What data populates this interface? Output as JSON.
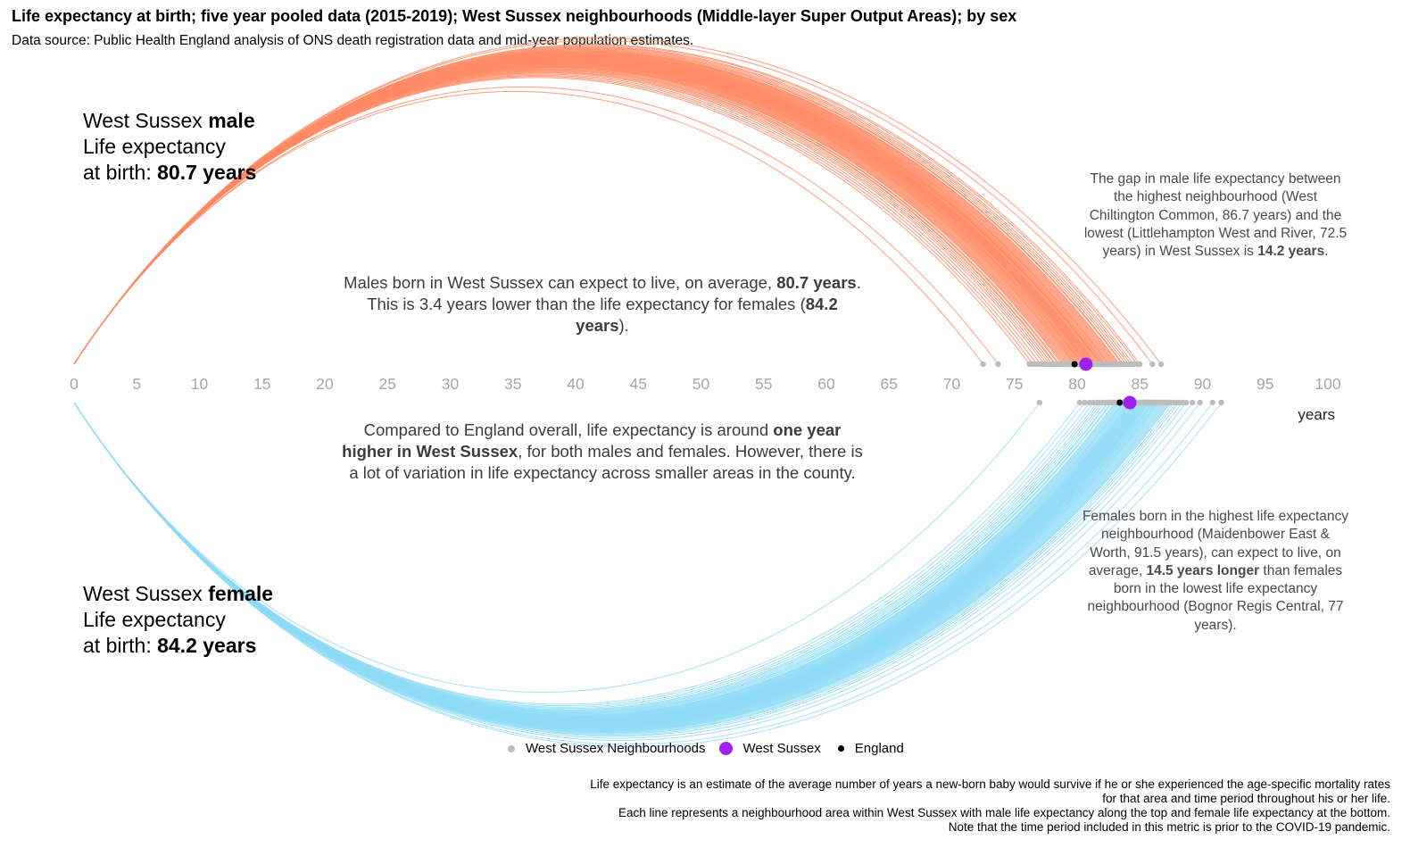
{
  "title": "Life expectancy at birth; five year pooled data (2015-2019); West Sussex neighbourhoods (Middle-layer Super Output Areas); by sex",
  "subtitle": "Data source: Public Health England analysis of ONS death registration data and mid-year population estimates.",
  "male_label": {
    "prefix": "West Sussex ",
    "sex": "male",
    "line2": "Life expectancy",
    "line3_prefix": "at birth: ",
    "value": "80.7 years"
  },
  "female_label": {
    "prefix": "West Sussex ",
    "sex": "female",
    "line2": "Life expectancy",
    "line3_prefix": "at birth: ",
    "value": "84.2 years"
  },
  "notes": {
    "males": {
      "t1": "Males born in West Sussex can expect to live, on average, ",
      "b1": "80.7 years",
      "t2": ". This is 3.4 years lower than the life expectancy for females (",
      "b2": "84.2 years",
      "t3": ")."
    },
    "compare": {
      "t1": "Compared to England overall, life expectancy is around ",
      "b1": "one year higher in West Sussex",
      "t2": ", for both males and females. However, there is a lot of variation in life expectancy across smaller areas in the county."
    },
    "male_gap": {
      "t1": "The gap in male life expectancy between the highest neighbourhood (West Chiltington Common, 86.7 years) and the lowest (Littlehampton West and River, 72.5 years) in West Sussex is ",
      "b1": "14.2 years",
      "t2": "."
    },
    "female_gap": {
      "t1": "Females born in the highest life expectancy neighbourhood (Maidenbower East & Worth, 91.5 years), can expect to live, on average, ",
      "b1": "14.5 years longer",
      "t2": " than females born in the lowest life expectancy neighbourhood (Bognor Regis Central, 77 years)."
    }
  },
  "legend": {
    "neighbourhoods": "West Sussex Neighbourhoods",
    "west_sussex": "West Sussex",
    "england": "England"
  },
  "caption": {
    "line1": "Life expectancy is an estimate of the average number of years a new-born baby would survive if he or she experienced the age-specific mortality rates",
    "line2": "for that area and time period throughout his or her life.",
    "line3": "Each line represents a neighbourhood area within West Sussex with male life expectancy along the top and female life expectancy at the bottom.",
    "line4": "Note that the time period included in this metric is prior to the COVID-19 pandemic."
  },
  "colors": {
    "male": "#ff8c66",
    "female": "#8fdcf7",
    "neighbourhood_point": "#bdbdbd",
    "west_sussex_point": "#a020f0",
    "england_point": "#000000",
    "axis_text": "#a6a6a6"
  },
  "chart_data": {
    "type": "arc",
    "xlabel": "years",
    "xlim": [
      0,
      100
    ],
    "x_ticks": [
      0,
      5,
      10,
      15,
      20,
      25,
      30,
      35,
      40,
      45,
      50,
      55,
      60,
      65,
      70,
      75,
      80,
      85,
      90,
      95,
      100
    ],
    "male": {
      "west_sussex": 80.7,
      "england": 79.8,
      "min": 72.5,
      "max": 86.7,
      "neighbourhoods": [
        72.5,
        73.7,
        76.2,
        76.5,
        76.8,
        77.1,
        77.4,
        77.6,
        77.8,
        78.0,
        78.2,
        78.3,
        78.5,
        78.6,
        78.8,
        78.9,
        79.0,
        79.1,
        79.2,
        79.3,
        79.4,
        79.5,
        79.6,
        79.7,
        79.8,
        79.8,
        79.9,
        80.0,
        80.0,
        80.1,
        80.2,
        80.2,
        80.3,
        80.4,
        80.4,
        80.5,
        80.5,
        80.6,
        80.7,
        80.7,
        80.8,
        80.8,
        80.9,
        80.9,
        81.0,
        81.0,
        81.1,
        81.1,
        81.2,
        81.2,
        81.3,
        81.3,
        81.4,
        81.4,
        81.5,
        81.5,
        81.6,
        81.6,
        81.7,
        81.8,
        81.8,
        81.9,
        81.9,
        82.0,
        82.0,
        82.1,
        82.2,
        82.2,
        82.3,
        82.4,
        82.5,
        82.5,
        82.6,
        82.7,
        82.8,
        82.9,
        83.0,
        83.1,
        83.2,
        83.3,
        83.4,
        83.6,
        83.7,
        83.9,
        84.1,
        84.3,
        84.5,
        84.8,
        85.0,
        86.0,
        86.7
      ]
    },
    "female": {
      "west_sussex": 84.2,
      "england": 83.4,
      "min": 77.0,
      "max": 91.5,
      "neighbourhoods": [
        77.0,
        80.2,
        80.6,
        81.0,
        81.3,
        81.6,
        81.8,
        82.0,
        82.2,
        82.4,
        82.5,
        82.7,
        82.8,
        83.0,
        83.1,
        83.2,
        83.3,
        83.4,
        83.5,
        83.6,
        83.7,
        83.7,
        83.8,
        83.9,
        84.0,
        84.0,
        84.1,
        84.2,
        84.2,
        84.3,
        84.3,
        84.4,
        84.4,
        84.5,
        84.5,
        84.6,
        84.6,
        84.7,
        84.7,
        84.8,
        84.8,
        84.9,
        84.9,
        85.0,
        85.0,
        85.1,
        85.1,
        85.2,
        85.2,
        85.3,
        85.3,
        85.4,
        85.4,
        85.5,
        85.5,
        85.6,
        85.6,
        85.7,
        85.7,
        85.8,
        85.8,
        85.9,
        86.0,
        86.0,
        86.1,
        86.1,
        86.2,
        86.3,
        86.3,
        86.4,
        86.5,
        86.5,
        86.6,
        86.7,
        86.8,
        86.9,
        87.0,
        87.1,
        87.2,
        87.3,
        87.4,
        87.5,
        87.7,
        87.9,
        88.1,
        88.4,
        88.7,
        89.2,
        89.8,
        90.8,
        91.5
      ]
    }
  }
}
